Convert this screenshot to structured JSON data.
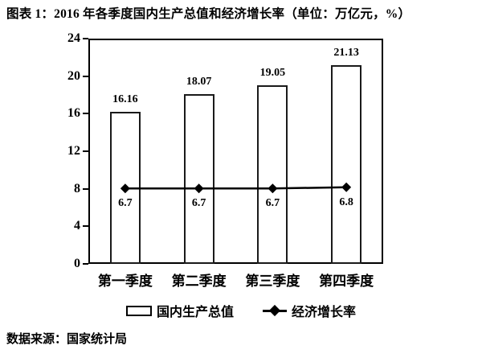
{
  "page": {
    "title": "图表 1：2016 年各季度国内生产总值和经济增长率（单位：万亿元，%）",
    "source_note": "数据来源：国家统计局"
  },
  "legend": {
    "bar_label": "国内生产总值",
    "line_label": "经济增长率"
  },
  "colors": {
    "ink": "#000000",
    "background": "#ffffff",
    "bar_fill": "#ffffff"
  },
  "chart_data": {
    "type": "bar",
    "title": "2016 年各季度国内生产总值和经济增长率",
    "unit_note": "单位：万亿元，%",
    "categories": [
      "第一季度",
      "第二季度",
      "第三季度",
      "第四季度"
    ],
    "series": [
      {
        "name": "国内生产总值",
        "type": "bar",
        "values": [
          16.16,
          18.07,
          19.05,
          21.13
        ]
      },
      {
        "name": "经济增长率",
        "type": "line",
        "values": [
          6.7,
          6.7,
          6.7,
          6.8
        ]
      }
    ],
    "y_axis": {
      "min": 0,
      "max": 24,
      "ticks": [
        0,
        4,
        8,
        12,
        16,
        20,
        24
      ]
    },
    "line_display_scale": 1.2,
    "grid": false,
    "legend_position": "bottom",
    "bar_fill": "#ffffff",
    "ink": "#000000"
  }
}
